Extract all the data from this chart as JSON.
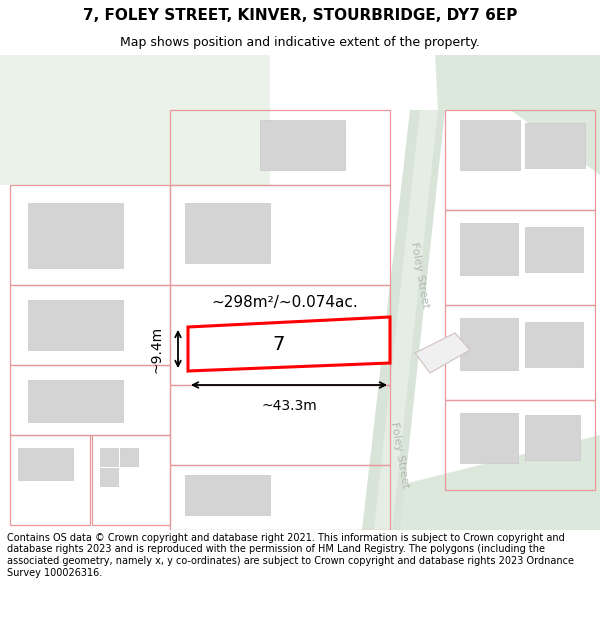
{
  "title_line1": "7, FOLEY STREET, KINVER, STOURBRIDGE, DY7 6EP",
  "title_line2": "Map shows position and indicative extent of the property.",
  "footer_text": "Contains OS data © Crown copyright and database right 2021. This information is subject to Crown copyright and database rights 2023 and is reproduced with the permission of HM Land Registry. The polygons (including the associated geometry, namely x, y co-ordinates) are subject to Crown copyright and database rights 2023 Ordnance Survey 100026316.",
  "bg_color": "#f1f4f1",
  "road_fill": "#dce6dc",
  "road_surface": "#e8ede8",
  "bld_fill": "#d4d4d4",
  "bld_edge": "#c8c8c8",
  "boundary_color": "#e89898",
  "plot_color": "#ff0000",
  "street_label": "Foley Street",
  "area_label": "~298m²/~0.074ac.",
  "number_label": "7",
  "width_label": "~43.3m",
  "height_label": "~9.4m"
}
